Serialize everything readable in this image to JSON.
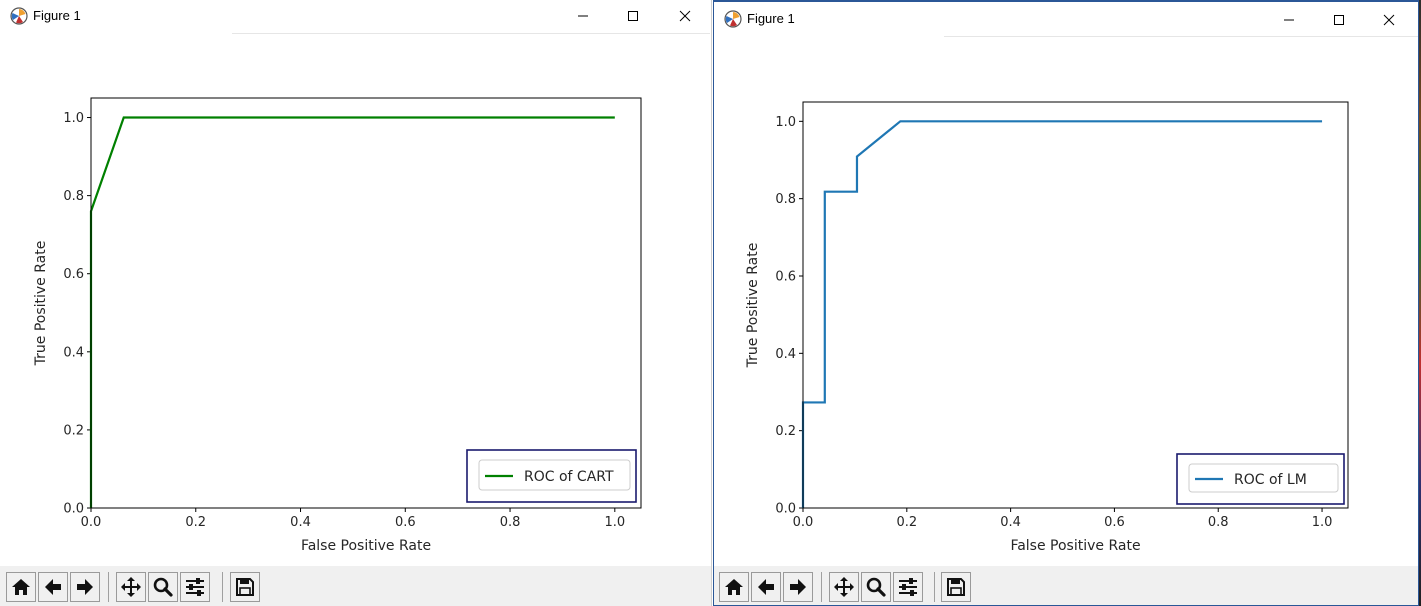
{
  "windows": [
    {
      "title": "Figure 1",
      "toolbar": [
        "home-icon",
        "back-arrow-icon",
        "forward-arrow-icon",
        "pan-icon",
        "zoom-icon",
        "configure-subplots-icon",
        "save-icon"
      ]
    },
    {
      "title": "Figure 1",
      "toolbar": [
        "home-icon",
        "back-arrow-icon",
        "forward-arrow-icon",
        "pan-icon",
        "zoom-icon",
        "configure-subplots-icon",
        "save-icon"
      ]
    }
  ],
  "chart_data": [
    {
      "type": "line",
      "xlabel": "False Positive Rate",
      "ylabel": "True Positive Rate",
      "xlim": [
        0,
        1.05
      ],
      "ylim": [
        0,
        1.05
      ],
      "xticks": [
        "0.0",
        "0.2",
        "0.4",
        "0.6",
        "0.8",
        "1.0"
      ],
      "yticks": [
        "0.0",
        "0.2",
        "0.4",
        "0.6",
        "0.8",
        "1.0"
      ],
      "grid": false,
      "legend_position": "lower-right",
      "series": [
        {
          "name": "ROC of CART",
          "color": "#008000",
          "x": [
            0.0,
            0.0,
            0.0625,
            1.0
          ],
          "y": [
            0.0,
            0.76,
            1.0,
            1.0
          ]
        }
      ]
    },
    {
      "type": "line",
      "xlabel": "False Positive Rate",
      "ylabel": "True Positive Rate",
      "xlim": [
        0,
        1.05
      ],
      "ylim": [
        0,
        1.05
      ],
      "xticks": [
        "0.0",
        "0.2",
        "0.4",
        "0.6",
        "0.8",
        "1.0"
      ],
      "yticks": [
        "0.0",
        "0.2",
        "0.4",
        "0.6",
        "0.8",
        "1.0"
      ],
      "grid": false,
      "legend_position": "lower-right",
      "series": [
        {
          "name": "ROC of LM",
          "color": "#1f77b4",
          "x": [
            0.0,
            0.0,
            0.042,
            0.042,
            0.104,
            0.104,
            0.1875,
            1.0
          ],
          "y": [
            0.0,
            0.273,
            0.273,
            0.818,
            0.818,
            0.909,
            1.0,
            1.0
          ]
        }
      ]
    }
  ]
}
